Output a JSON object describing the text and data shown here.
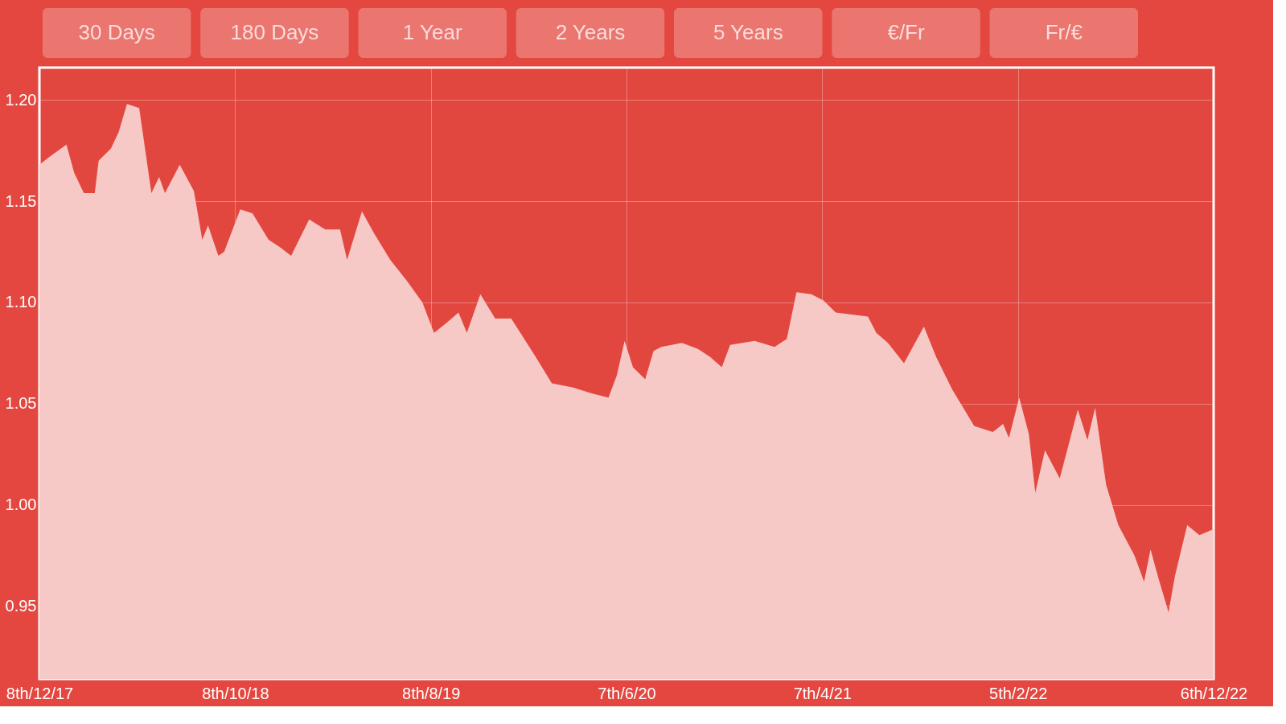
{
  "chart_data": {
    "type": "area",
    "annotations": [
      "30 Days",
      "180 Days",
      "1 Year",
      "2 Years",
      "5 Years",
      "€/Fr",
      "Fr/€"
    ],
    "xlim": [
      "2017-12-08",
      "2022-12-06"
    ],
    "ylim": [
      0.914,
      1.216
    ],
    "xticks": [
      {
        "value": "2017-12-08",
        "label": "8th/12/17"
      },
      {
        "value": "2018-10-08",
        "label": "8th/10/18"
      },
      {
        "value": "2019-08-08",
        "label": "8th/8/19"
      },
      {
        "value": "2020-06-07",
        "label": "7th/6/20"
      },
      {
        "value": "2021-04-07",
        "label": "7th/4/21"
      },
      {
        "value": "2022-02-05",
        "label": "5th/2/22"
      },
      {
        "value": "2022-12-06",
        "label": "6th/12/22"
      }
    ],
    "yticks": [
      {
        "value": 0.95,
        "label": "0.95"
      },
      {
        "value": 1.0,
        "label": "1.00"
      },
      {
        "value": 1.05,
        "label": "1.05"
      },
      {
        "value": 1.1,
        "label": "1.10"
      },
      {
        "value": 1.15,
        "label": "1.15"
      },
      {
        "value": 1.2,
        "label": "1.20"
      }
    ],
    "grid": true,
    "series": [
      {
        "color": "#f6c8c6",
        "x": [
          "2017-12-08",
          "2017-12-24",
          "2018-01-19",
          "2018-01-31",
          "2018-02-15",
          "2018-03-04",
          "2018-03-10",
          "2018-03-29",
          "2018-04-10",
          "2018-04-23",
          "2018-05-12",
          "2018-05-31",
          "2018-06-12",
          "2018-06-21",
          "2018-07-14",
          "2018-08-05",
          "2018-08-18",
          "2018-08-27",
          "2018-09-12",
          "2018-09-21",
          "2018-10-16",
          "2018-11-04",
          "2018-11-29",
          "2018-12-18",
          "2019-01-03",
          "2019-01-31",
          "2019-02-25",
          "2019-03-20",
          "2019-03-31",
          "2019-04-23",
          "2019-05-12",
          "2019-06-06",
          "2019-07-01",
          "2019-07-26",
          "2019-08-13",
          "2019-09-02",
          "2019-09-20",
          "2019-10-03",
          "2019-10-24",
          "2019-11-16",
          "2019-12-11",
          "2020-01-18",
          "2020-02-12",
          "2020-03-15",
          "2020-04-15",
          "2020-05-10",
          "2020-05-23",
          "2020-06-04",
          "2020-06-17",
          "2020-07-06",
          "2020-07-19",
          "2020-07-31",
          "2020-09-01",
          "2020-09-26",
          "2020-10-15",
          "2020-11-02",
          "2020-11-15",
          "2020-12-23",
          "2021-01-23",
          "2021-02-11",
          "2021-02-26",
          "2021-03-21",
          "2021-04-09",
          "2021-04-28",
          "2021-05-23",
          "2021-06-17",
          "2021-06-30",
          "2021-07-18",
          "2021-08-12",
          "2021-09-12",
          "2021-10-01",
          "2021-10-26",
          "2021-11-29",
          "2021-12-28",
          "2022-01-13",
          "2022-01-22",
          "2022-02-07",
          "2022-02-22",
          "2022-03-04",
          "2022-03-19",
          "2022-04-11",
          "2022-05-09",
          "2022-05-24",
          "2022-06-05",
          "2022-06-22",
          "2022-07-11",
          "2022-08-05",
          "2022-08-20",
          "2022-08-30",
          "2022-09-12",
          "2022-09-27",
          "2022-10-07",
          "2022-10-26",
          "2022-11-14",
          "2022-12-06"
        ],
        "values": [
          1.168,
          1.172,
          1.178,
          1.164,
          1.154,
          1.154,
          1.17,
          1.176,
          1.184,
          1.198,
          1.196,
          1.154,
          1.162,
          1.154,
          1.168,
          1.155,
          1.131,
          1.138,
          1.123,
          1.125,
          1.146,
          1.144,
          1.131,
          1.127,
          1.123,
          1.141,
          1.136,
          1.136,
          1.121,
          1.145,
          1.134,
          1.121,
          1.111,
          1.1,
          1.085,
          1.09,
          1.095,
          1.085,
          1.104,
          1.092,
          1.092,
          1.073,
          1.06,
          1.058,
          1.055,
          1.053,
          1.064,
          1.081,
          1.068,
          1.062,
          1.076,
          1.078,
          1.08,
          1.077,
          1.073,
          1.068,
          1.079,
          1.081,
          1.078,
          1.082,
          1.105,
          1.104,
          1.101,
          1.095,
          1.094,
          1.093,
          1.085,
          1.08,
          1.07,
          1.088,
          1.073,
          1.057,
          1.039,
          1.036,
          1.04,
          1.033,
          1.053,
          1.035,
          1.006,
          1.027,
          1.013,
          1.047,
          1.032,
          1.048,
          1.01,
          0.99,
          0.975,
          0.962,
          0.978,
          0.963,
          0.947,
          0.965,
          0.99,
          0.985,
          0.988
        ]
      }
    ]
  }
}
